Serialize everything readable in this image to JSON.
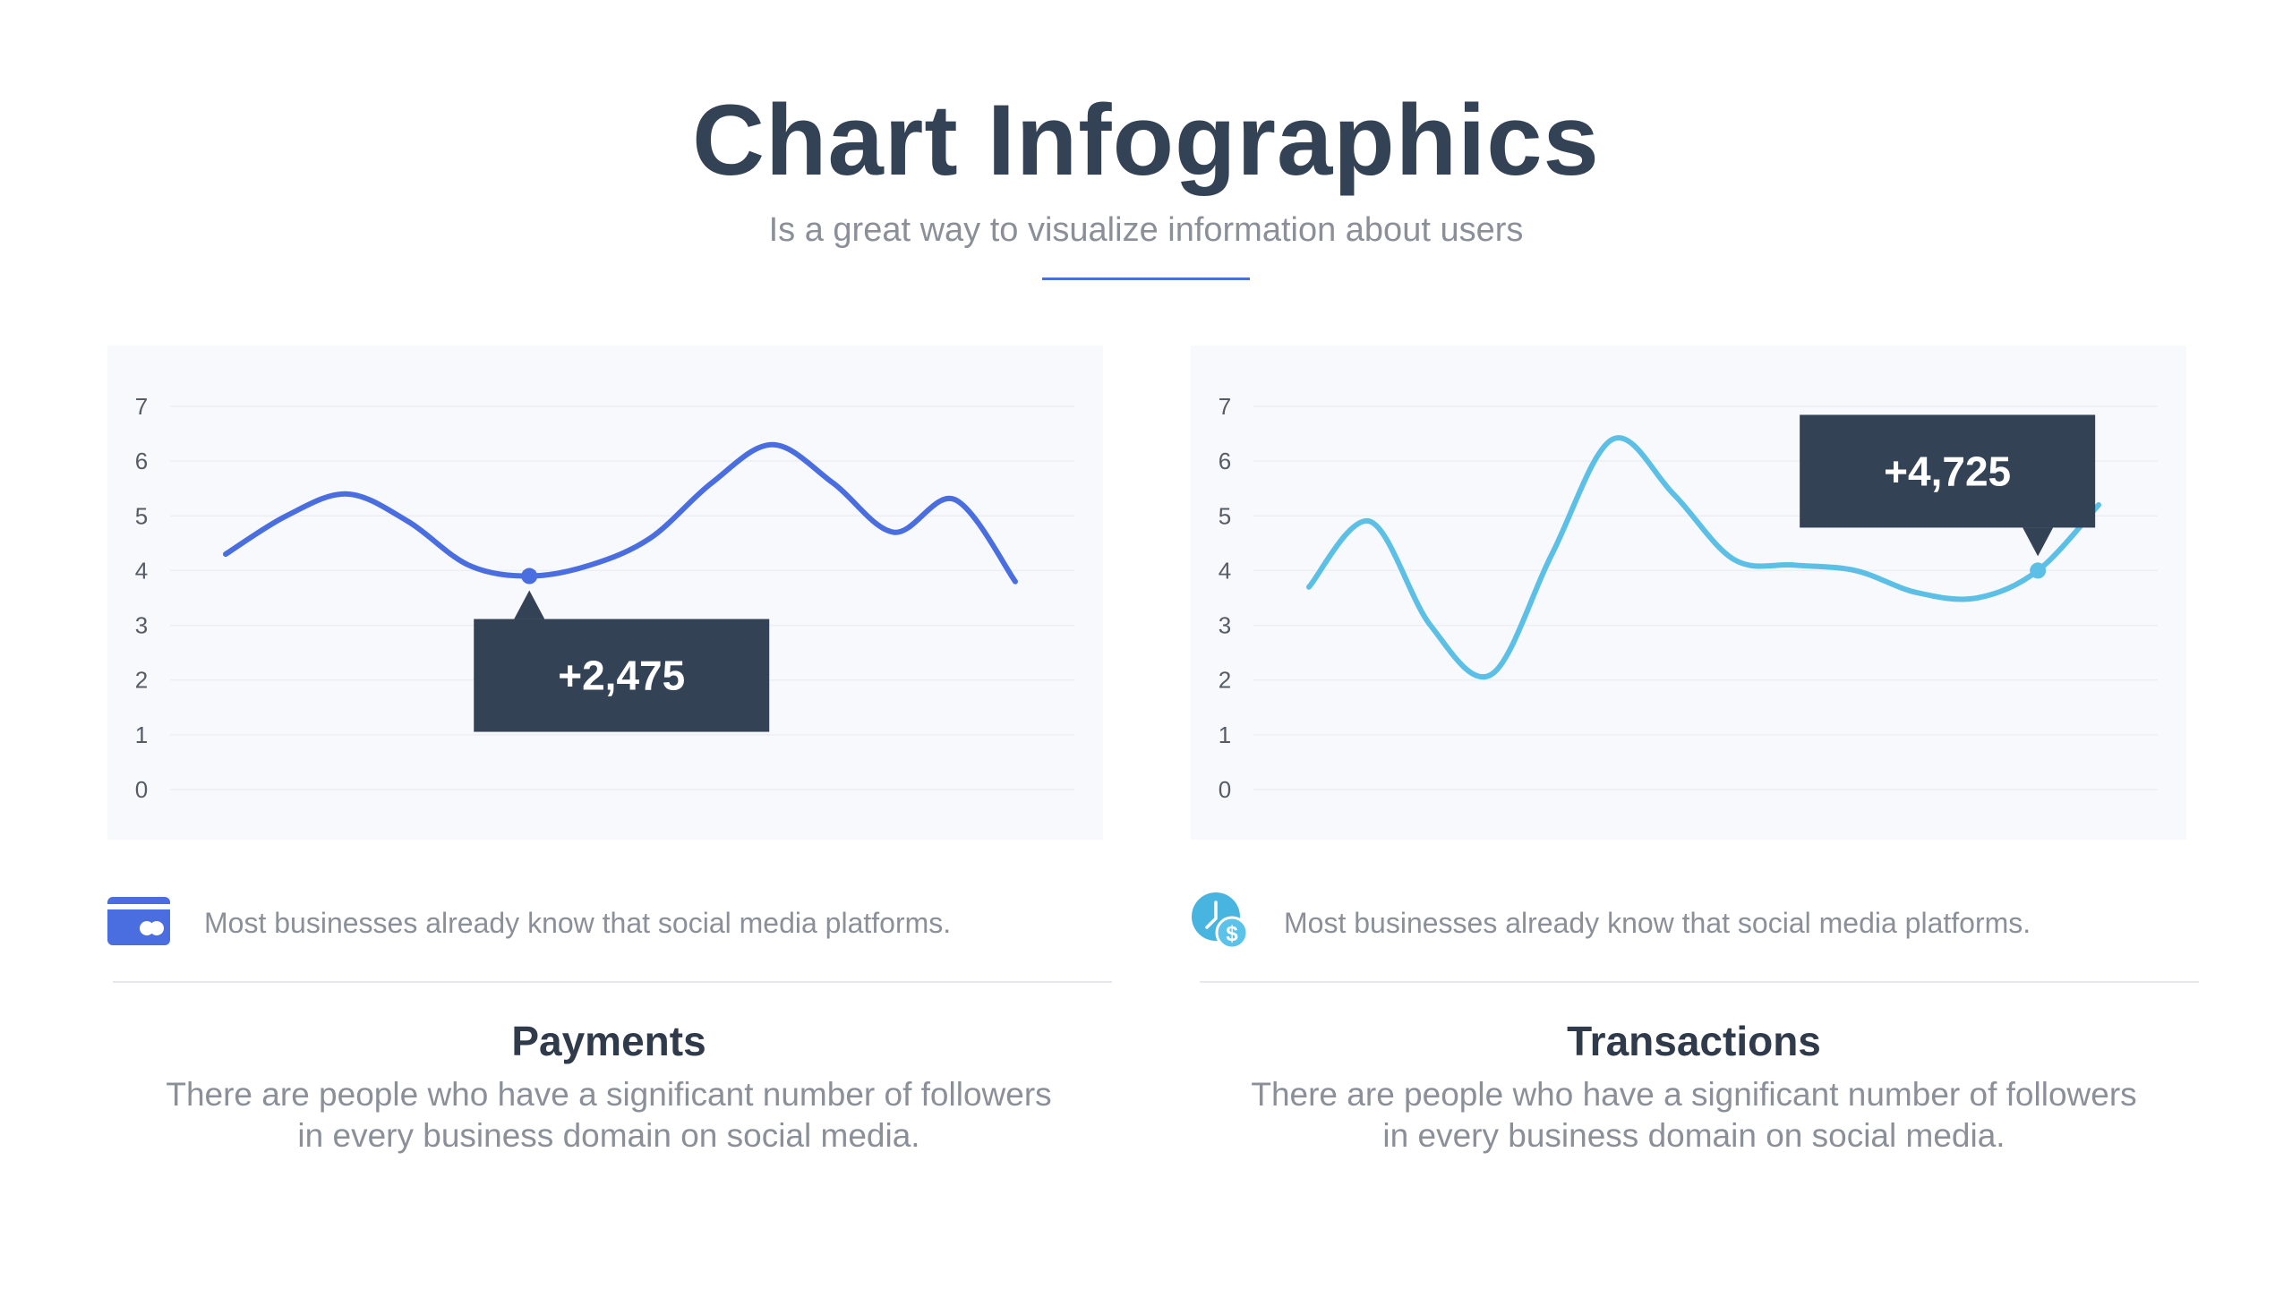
{
  "header": {
    "title": "Chart Infographics",
    "subtitle": "Is a great way to visualize information about users",
    "accent_color": "#4a70d8"
  },
  "left_panel": {
    "callout": "+2,475",
    "feature_text": "Most businesses already know that social media platforms.",
    "feature_icon": "credit-card-icon",
    "section_title": "Payments",
    "section_desc_line1": "There are people who have a significant number of followers",
    "section_desc_line2": "in every business domain on social media."
  },
  "right_panel": {
    "callout": "+4,725",
    "feature_text": "Most businesses already know that social media platforms.",
    "feature_icon": "transaction-clock-dollar-icon",
    "section_title": "Transactions",
    "section_desc_line1": "There are people who have a significant number of followers",
    "section_desc_line2": "in every business domain on social media."
  },
  "chart_data": [
    {
      "type": "line",
      "series": [
        {
          "color": "#4a6ee0",
          "smooth": true,
          "x": [
            0,
            1,
            2,
            3,
            4,
            5,
            6,
            7,
            8,
            9,
            10,
            11,
            12,
            13
          ],
          "values": [
            4.3,
            5.0,
            5.4,
            4.9,
            4.1,
            3.9,
            4.1,
            4.6,
            5.6,
            6.3,
            5.6,
            4.7,
            5.3,
            3.8
          ]
        }
      ],
      "highlight": {
        "index": 5,
        "label": "+2,475"
      },
      "ylim": [
        0,
        7
      ],
      "yticks": [
        0,
        1,
        2,
        3,
        4,
        5,
        6,
        7
      ],
      "grid": true,
      "legend": "none"
    },
    {
      "type": "line",
      "series": [
        {
          "color": "#5bbfe6",
          "smooth": true,
          "x": [
            0,
            1,
            2,
            3,
            4,
            5,
            6,
            7,
            8,
            9,
            10,
            11,
            12,
            13
          ],
          "values": [
            3.7,
            4.9,
            3.0,
            2.1,
            4.3,
            6.4,
            5.4,
            4.2,
            4.1,
            4.0,
            3.6,
            3.5,
            4.0,
            5.2
          ]
        }
      ],
      "highlight": {
        "index": 12,
        "label": "+4,725"
      },
      "ylim": [
        0,
        7
      ],
      "yticks": [
        0,
        1,
        2,
        3,
        4,
        5,
        6,
        7
      ],
      "grid": true,
      "legend": "none"
    }
  ]
}
